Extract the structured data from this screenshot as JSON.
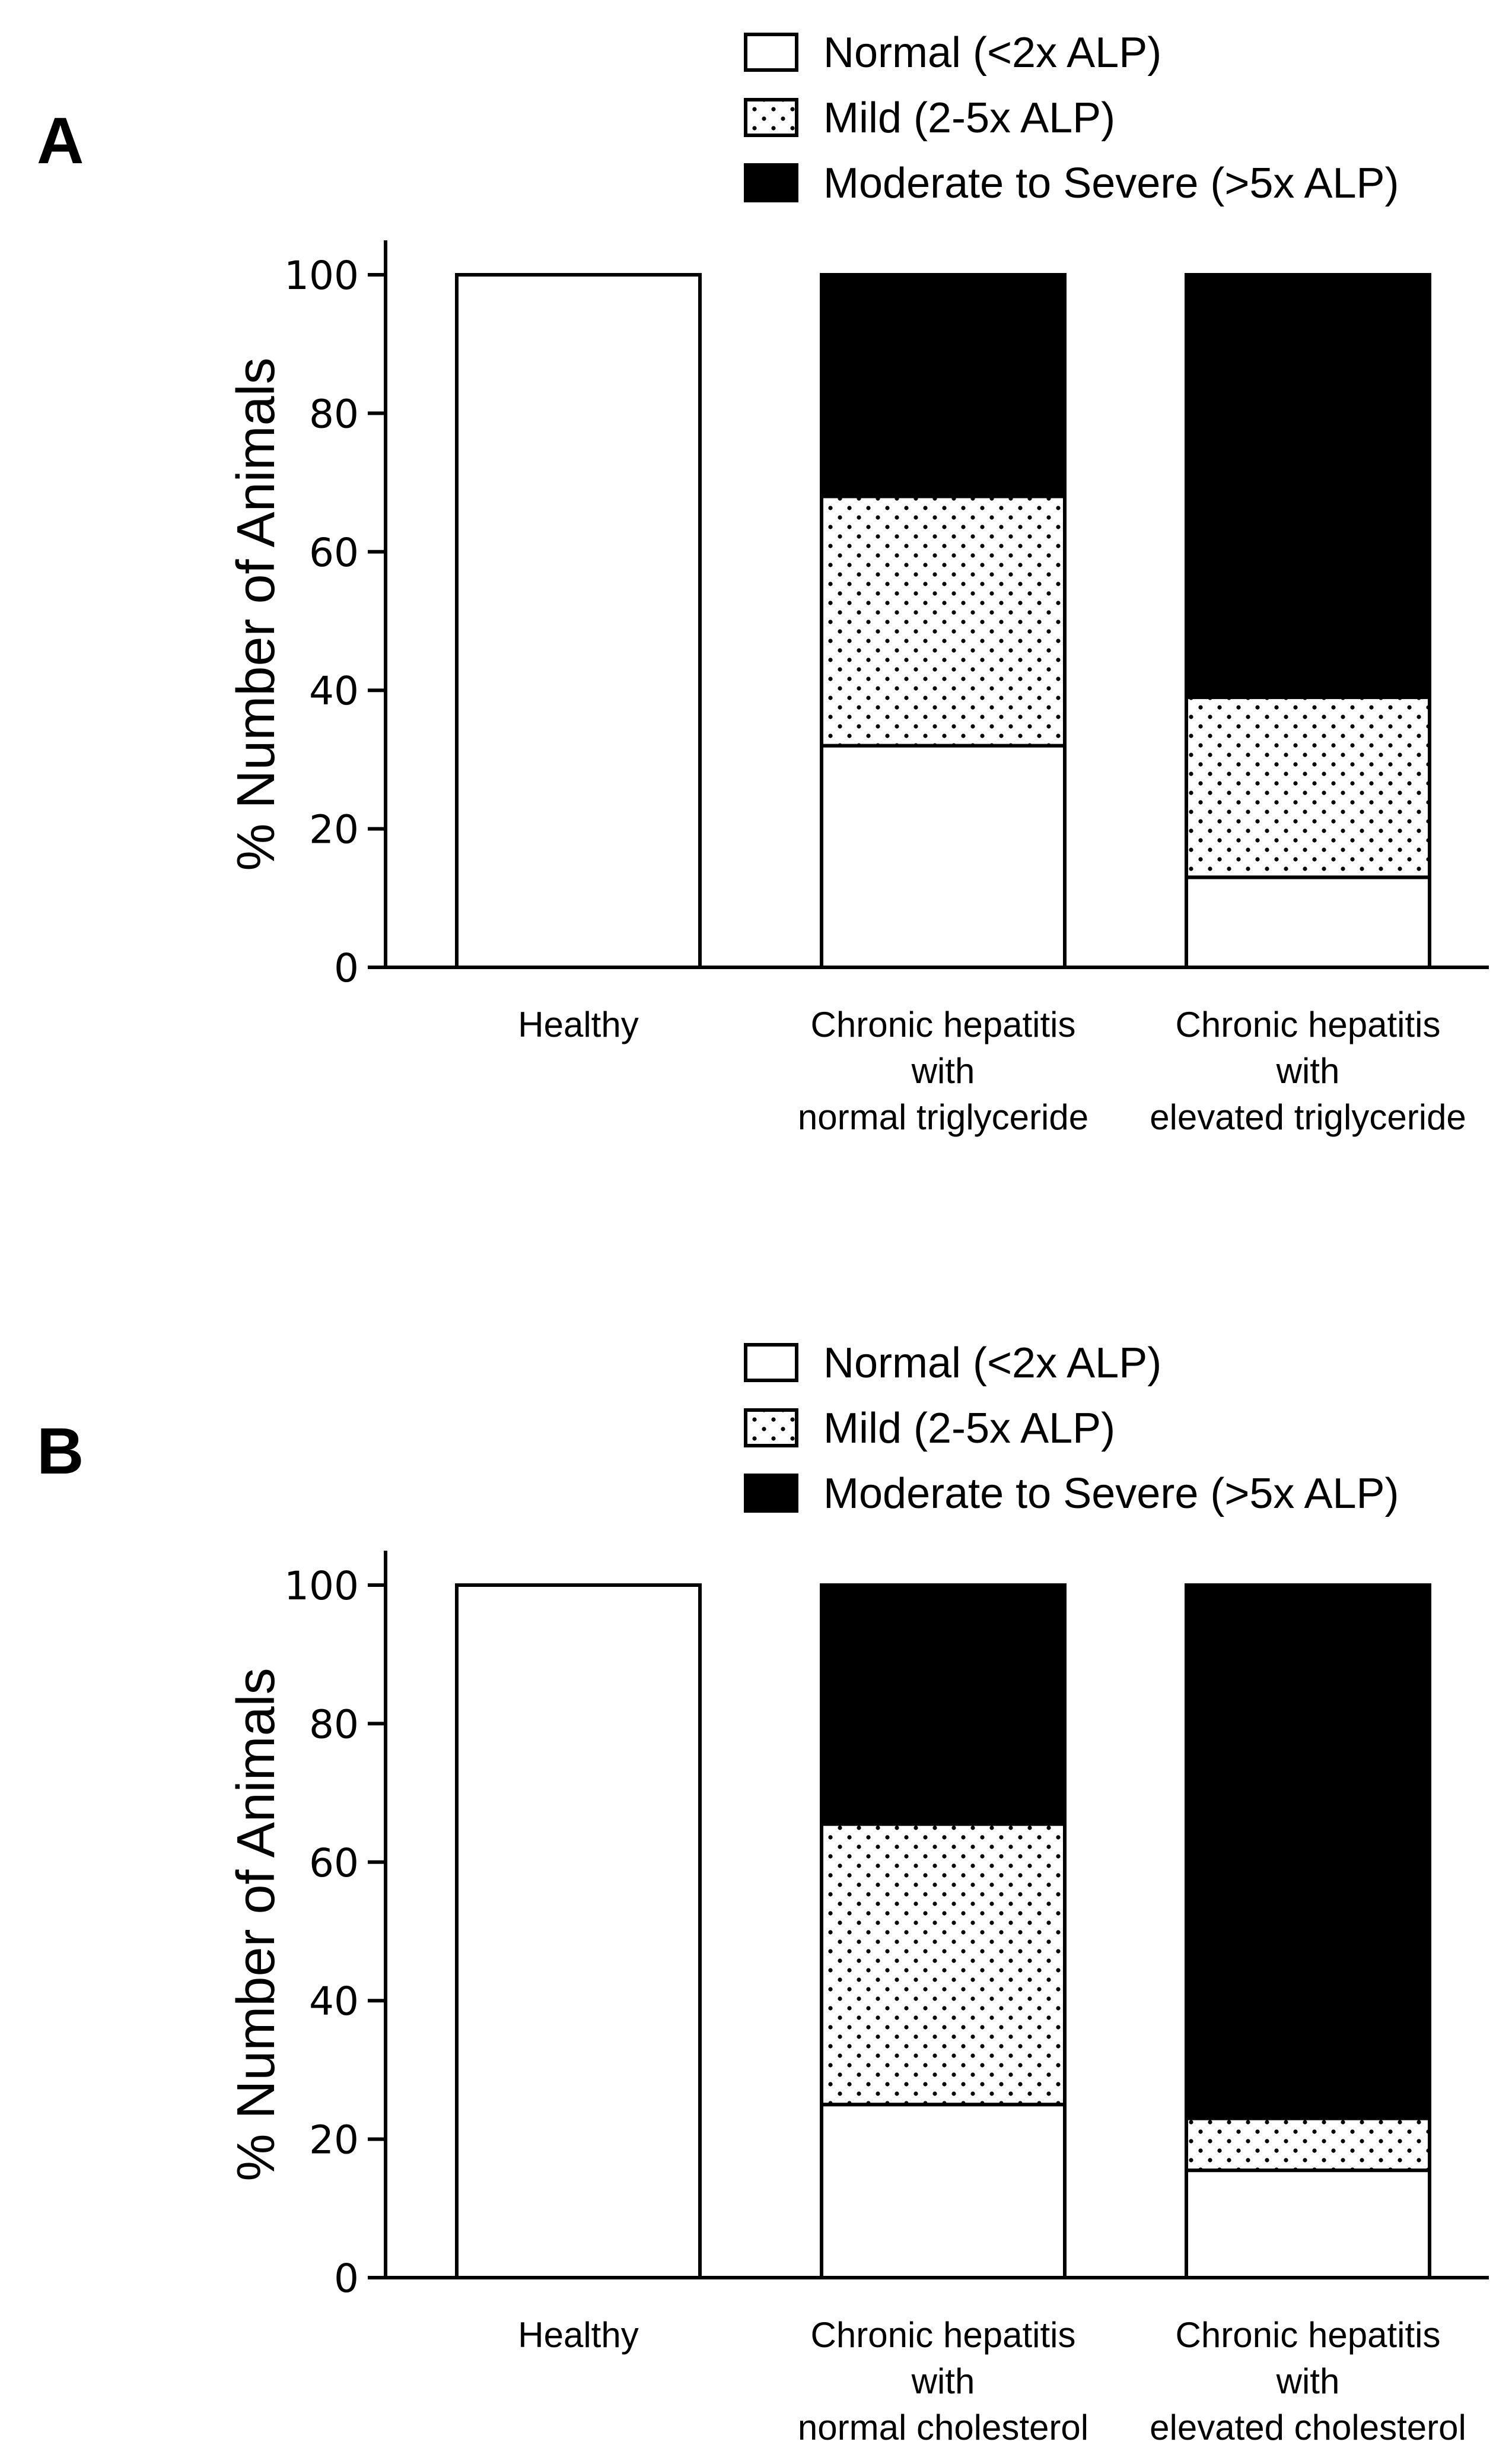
{
  "chart_data": [
    {
      "type": "bar",
      "stacked": true,
      "panel_label": "A",
      "categories": [
        [
          "Healthy"
        ],
        [
          "Chronic hepatitis",
          "with",
          "normal triglyceride"
        ],
        [
          "Chronic hepatitis",
          "with",
          "elevated triglyceride"
        ]
      ],
      "series": [
        {
          "name": "Normal (<2x ALP)",
          "fill": "white",
          "values": [
            100,
            32,
            13
          ]
        },
        {
          "name": "Mild (2-5x ALP)",
          "fill": "dots",
          "values": [
            0,
            36,
            26
          ]
        },
        {
          "name": "Moderate to Severe (>5x ALP)",
          "fill": "black",
          "values": [
            0,
            32,
            61
          ]
        }
      ],
      "ylabel": "% Number of  Animals",
      "xlabel": "",
      "ylim": [
        0,
        100
      ],
      "yticks": [
        0,
        20,
        40,
        60,
        80,
        100
      ],
      "legend_position": "top-right"
    },
    {
      "type": "bar",
      "stacked": true,
      "panel_label": "B",
      "categories": [
        [
          "Healthy"
        ],
        [
          "Chronic hepatitis",
          "with",
          "normal cholesterol"
        ],
        [
          "Chronic hepatitis",
          "with",
          "elevated cholesterol"
        ]
      ],
      "series": [
        {
          "name": "Normal (<2x ALP)",
          "fill": "white",
          "values": [
            100,
            25,
            15.5
          ]
        },
        {
          "name": "Mild (2-5x ALP)",
          "fill": "dots",
          "values": [
            0,
            40.5,
            7.5
          ]
        },
        {
          "name": "Moderate to Severe (>5x ALP)",
          "fill": "black",
          "values": [
            0,
            34.5,
            77
          ]
        }
      ],
      "ylabel": "% Number of  Animals",
      "xlabel": "",
      "ylim": [
        0,
        100
      ],
      "yticks": [
        0,
        20,
        40,
        60,
        80,
        100
      ],
      "legend_position": "top-right"
    }
  ]
}
